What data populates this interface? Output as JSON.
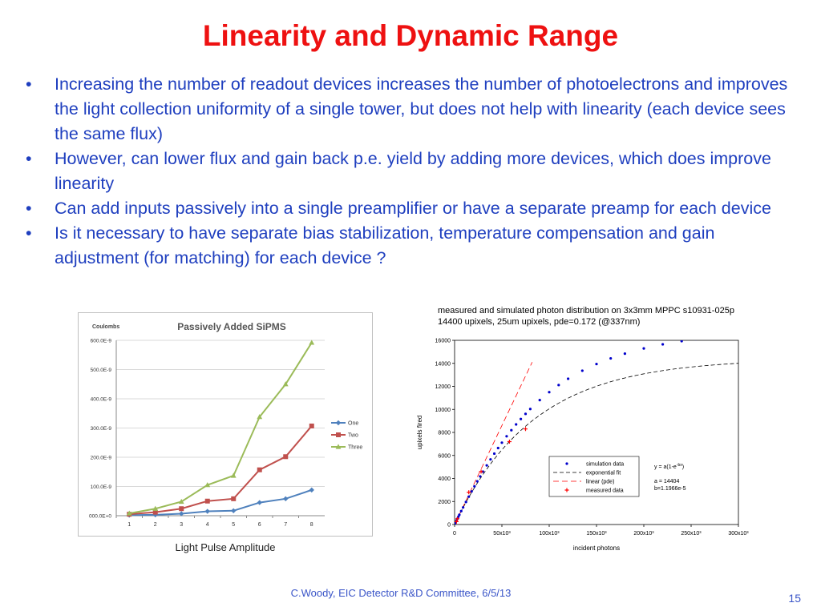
{
  "title": "Linearity and Dynamic Range",
  "bullet_glyph": "•",
  "bullets": [
    "Increasing the number of readout devices increases the number of photoelectrons and improves the light collection uniformity of a single tower, but does not help with linearity (each device sees the same flux)",
    "However, can lower flux and gain back p.e. yield by adding more devices, which does improve linearity",
    "Can add inputs passively into a single preamplifier or have a separate preamp for each device",
    "Is it necessary to have separate bias stabilization, temperature compensation and gain adjustment (for matching) for each device ?"
  ],
  "left_caption": "Light Pulse Amplitude",
  "right_header_line1": "measured and simulated photon distribution on 3x3mm MPPC s10931-025p",
  "right_header_line2": "14400 upixels, 25um upixels,  pde=0.172 (@337nm)",
  "footer": "C.Woody, EIC Detector R&D Committee,  6/5/13",
  "page_number": "15",
  "chart_data": [
    {
      "type": "line",
      "title": "Passively Added SiPMS",
      "ylabel": "Coulombs",
      "xlabel": "Light Pulse Amplitude",
      "categories": [
        1,
        2,
        3,
        4,
        5,
        6,
        7,
        8
      ],
      "ytick_labels": [
        "000.0E+0",
        "100.0E-9",
        "200.0E-9",
        "300.0E-9",
        "400.0E-9",
        "500.0E-9",
        "600.0E-9"
      ],
      "ylim": [
        0,
        600
      ],
      "grid": true,
      "legend": "right",
      "series": [
        {
          "name": "One",
          "color": "#4f81bd",
          "marker": "diamond",
          "values": [
            2,
            3,
            7,
            15,
            17,
            45,
            58,
            88
          ]
        },
        {
          "name": "Two",
          "color": "#c0504d",
          "marker": "square",
          "values": [
            5,
            12,
            24,
            50,
            58,
            157,
            202,
            307
          ]
        },
        {
          "name": "Three",
          "color": "#9bbb59",
          "marker": "triangle",
          "values": [
            8,
            24,
            48,
            105,
            137,
            338,
            450,
            592
          ]
        }
      ]
    },
    {
      "type": "scatter",
      "xlabel": "incident photons",
      "ylabel": "upixels fired",
      "xlim": [
        0,
        300000
      ],
      "ylim": [
        0,
        16000
      ],
      "xtick_labels": [
        "0",
        "50x10³",
        "100x10³",
        "150x10³",
        "200x10³",
        "250x10³",
        "300x10³"
      ],
      "ytick_labels": [
        "0",
        "2000",
        "4000",
        "6000",
        "8000",
        "10000",
        "12000",
        "14000",
        "16000"
      ],
      "fit_parameters": {
        "a": 14404,
        "b": 1.1966e-05
      },
      "annotation_lines": [
        "y = a(1-e",
        "-bx",
        ")",
        "a = 14404",
        "b=1.1966e-5"
      ],
      "legend": "center",
      "series": [
        {
          "name": "simulation data",
          "color": "#0000cc",
          "marker": "dot",
          "x": [
            500,
            1000,
            2000,
            3000,
            4000,
            5000,
            7000,
            9000,
            12000,
            15000,
            18000,
            21000,
            24000,
            27000,
            30000,
            34000,
            38000,
            42000,
            46000,
            50000,
            55000,
            60000,
            65000,
            70000,
            75000,
            80000,
            90000,
            100000,
            110000,
            120000,
            135000,
            150000,
            165000,
            180000,
            200000,
            220000,
            240000,
            255000,
            270000,
            285000,
            300000
          ],
          "y": [
            86,
            172,
            342,
            510,
            676,
            841,
            1165,
            1483,
            1955,
            2419,
            2874,
            3318,
            3753,
            4179,
            4594,
            5136,
            5658,
            6160,
            6644,
            7109,
            7666,
            8194,
            8694,
            9166,
            9613,
            10035,
            10810,
            11500,
            12116,
            12665,
            13361,
            13942,
            14431,
            14841,
            15296,
            15652,
            15931,
            16101,
            16241,
            16357,
            16451
          ]
        },
        {
          "name": "exponential fit",
          "color": "#000000",
          "style": "dashed",
          "equation": "a(1-exp(-bx))"
        },
        {
          "name": "linear (pde)",
          "color": "#ff0000",
          "style": "dashed",
          "x": [
            0,
            82000
          ],
          "y": [
            0,
            14104
          ]
        },
        {
          "name": "measured data",
          "color": "#ff0000",
          "marker": "plus",
          "x": [
            2000,
            3000,
            15000,
            28000,
            58000,
            75000
          ],
          "y": [
            250,
            500,
            2800,
            4600,
            7200,
            8300
          ]
        }
      ]
    }
  ]
}
